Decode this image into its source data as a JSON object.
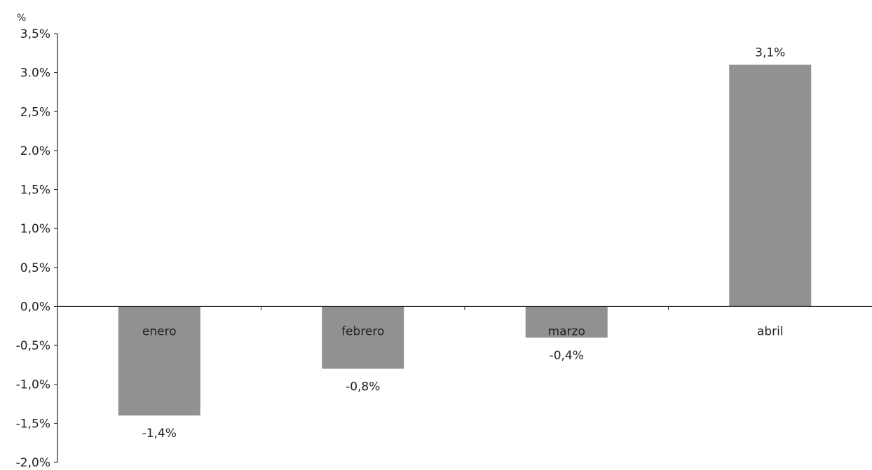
{
  "chart_data": {
    "type": "bar",
    "unit_label": "%",
    "categories": [
      "enero",
      "febrero",
      "marzo",
      "abril"
    ],
    "series": [
      {
        "values": [
          -1.4,
          -0.8,
          -0.4,
          3.1
        ]
      }
    ],
    "data_labels": [
      "-1,4%",
      "-0,8%",
      "-0,4%",
      "3,1%"
    ],
    "ylim": [
      -2.0,
      3.5
    ],
    "yticks": [
      3.5,
      3.0,
      2.5,
      2.0,
      1.5,
      1.0,
      0.5,
      0.0,
      -0.5,
      -1.0,
      -1.5,
      -2.0
    ],
    "ytick_labels": [
      "3,5%",
      "3.0%",
      "2,5%",
      "2.0%",
      "1,5%",
      "1,0%",
      "0,5%",
      "0,0%",
      "-0,5%",
      "-1,0%",
      "-1,5%",
      "-2,0%"
    ],
    "grid": false,
    "legend": "none",
    "bar_color": "#919191",
    "axis_color": "#222222"
  }
}
